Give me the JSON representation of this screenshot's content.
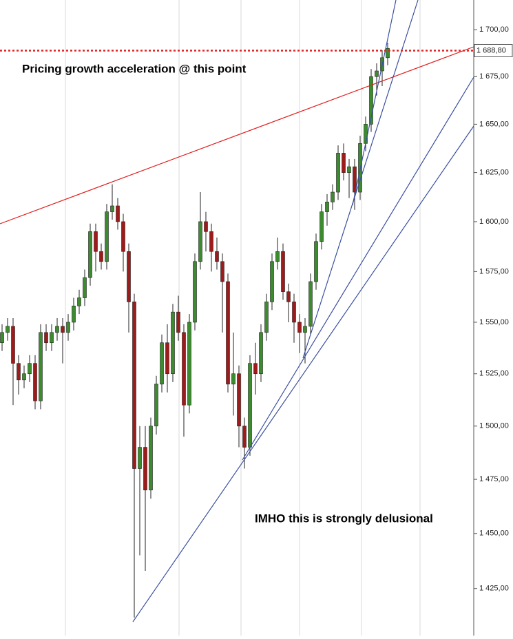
{
  "chart_data": {
    "type": "candlestick",
    "log_scale": true,
    "up_color": "#3d8b2f",
    "down_color": "#9e1b1b",
    "ylim": [
      1404,
      1716
    ],
    "yticks": [
      {
        "value": 1425,
        "label": "1 425,00"
      },
      {
        "value": 1450,
        "label": "1 450,00"
      },
      {
        "value": 1475,
        "label": "1 475,00"
      },
      {
        "value": 1500,
        "label": "1 500,00"
      },
      {
        "value": 1525,
        "label": "1 525,00"
      },
      {
        "value": 1550,
        "label": "1 550,00"
      },
      {
        "value": 1575,
        "label": "1 575,00"
      },
      {
        "value": 1600,
        "label": "1 600,00"
      },
      {
        "value": 1625,
        "label": "1 625,00"
      },
      {
        "value": 1650,
        "label": "1 650,00"
      },
      {
        "value": 1675,
        "label": "1 675,00"
      },
      {
        "value": 1700,
        "label": "1 700,00"
      }
    ],
    "reference_line": {
      "value": 1688.8,
      "label": "1 688,80",
      "color": "#e02020"
    },
    "annotations": [
      "Pricing growth acceleration @ this point",
      "IMHO this is strongly delusional"
    ],
    "ohlc": [
      [
        1540,
        1549,
        1536,
        1545
      ],
      [
        1545,
        1552,
        1541,
        1548
      ],
      [
        1548,
        1552,
        1510,
        1530
      ],
      [
        1530,
        1534,
        1515,
        1522
      ],
      [
        1522,
        1529,
        1518,
        1525
      ],
      [
        1525,
        1534,
        1521,
        1530
      ],
      [
        1530,
        1534,
        1508,
        1512
      ],
      [
        1512,
        1549,
        1508,
        1545
      ],
      [
        1545,
        1549,
        1536,
        1540
      ],
      [
        1540,
        1549,
        1536,
        1545
      ],
      [
        1545,
        1552,
        1541,
        1548
      ],
      [
        1548,
        1552,
        1530,
        1545
      ],
      [
        1545,
        1554,
        1541,
        1550
      ],
      [
        1550,
        1562,
        1546,
        1558
      ],
      [
        1558,
        1566,
        1554,
        1562
      ],
      [
        1562,
        1576,
        1558,
        1572
      ],
      [
        1572,
        1599,
        1568,
        1595
      ],
      [
        1595,
        1599,
        1575,
        1585
      ],
      [
        1585,
        1589,
        1576,
        1580
      ],
      [
        1580,
        1609,
        1576,
        1605
      ],
      [
        1605,
        1619,
        1601,
        1608
      ],
      [
        1608,
        1612,
        1596,
        1600
      ],
      [
        1600,
        1604,
        1575,
        1585
      ],
      [
        1585,
        1589,
        1545,
        1560
      ],
      [
        1560,
        1564,
        1412,
        1480
      ],
      [
        1480,
        1500,
        1440,
        1490
      ],
      [
        1490,
        1500,
        1433,
        1470
      ],
      [
        1470,
        1504,
        1466,
        1500
      ],
      [
        1500,
        1524,
        1496,
        1520
      ],
      [
        1520,
        1544,
        1516,
        1540
      ],
      [
        1540,
        1549,
        1516,
        1525
      ],
      [
        1525,
        1559,
        1521,
        1555
      ],
      [
        1555,
        1563,
        1541,
        1545
      ],
      [
        1545,
        1549,
        1495,
        1510
      ],
      [
        1510,
        1554,
        1506,
        1550
      ],
      [
        1550,
        1584,
        1546,
        1580
      ],
      [
        1580,
        1615,
        1576,
        1600
      ],
      [
        1600,
        1605,
        1585,
        1595
      ],
      [
        1595,
        1599,
        1575,
        1585
      ],
      [
        1585,
        1592,
        1576,
        1580
      ],
      [
        1580,
        1584,
        1545,
        1570
      ],
      [
        1570,
        1574,
        1516,
        1520
      ],
      [
        1520,
        1545,
        1505,
        1525
      ],
      [
        1525,
        1529,
        1490,
        1500
      ],
      [
        1500,
        1504,
        1480,
        1490
      ],
      [
        1490,
        1534,
        1486,
        1530
      ],
      [
        1530,
        1540,
        1515,
        1525
      ],
      [
        1525,
        1549,
        1521,
        1545
      ],
      [
        1545,
        1564,
        1541,
        1560
      ],
      [
        1560,
        1584,
        1556,
        1580
      ],
      [
        1580,
        1592,
        1576,
        1585
      ],
      [
        1585,
        1589,
        1561,
        1565
      ],
      [
        1565,
        1569,
        1550,
        1560
      ],
      [
        1560,
        1564,
        1540,
        1550
      ],
      [
        1550,
        1554,
        1535,
        1545
      ],
      [
        1545,
        1552,
        1530,
        1548
      ],
      [
        1548,
        1574,
        1544,
        1570
      ],
      [
        1570,
        1594,
        1566,
        1590
      ],
      [
        1590,
        1609,
        1586,
        1605
      ],
      [
        1605,
        1614,
        1598,
        1610
      ],
      [
        1610,
        1619,
        1606,
        1615
      ],
      [
        1615,
        1639,
        1611,
        1635
      ],
      [
        1635,
        1640,
        1621,
        1625
      ],
      [
        1625,
        1632,
        1612,
        1628
      ],
      [
        1628,
        1632,
        1606,
        1615
      ],
      [
        1615,
        1644,
        1611,
        1640
      ],
      [
        1640,
        1654,
        1636,
        1650
      ],
      [
        1650,
        1679,
        1646,
        1675
      ],
      [
        1675,
        1682,
        1665,
        1678
      ],
      [
        1678,
        1689,
        1670,
        1685
      ],
      [
        1685,
        1693,
        1681,
        1690
      ]
    ]
  }
}
